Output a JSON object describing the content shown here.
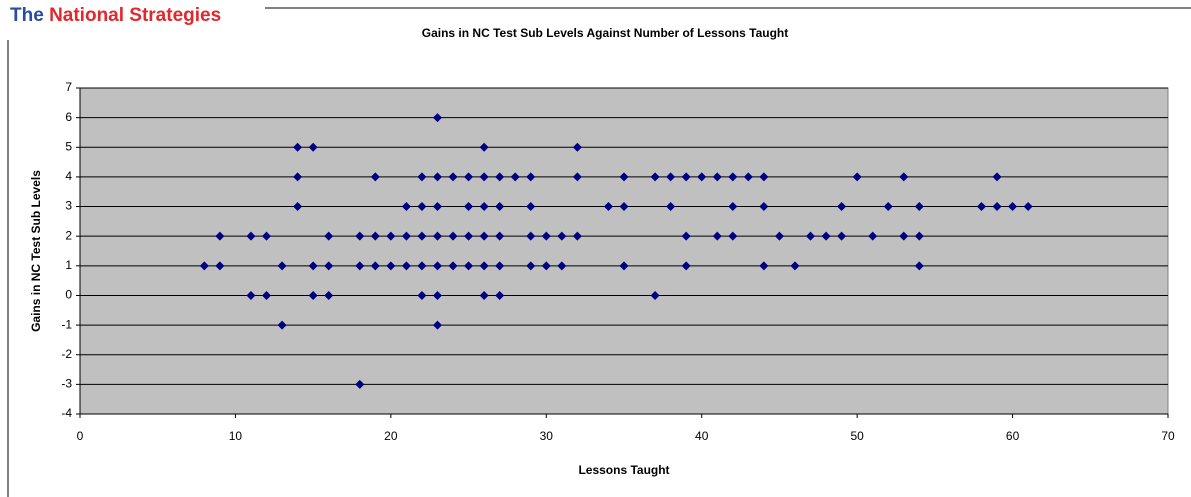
{
  "brand": {
    "prefix": "The",
    "name": "National Strategies"
  },
  "chart_data": {
    "type": "scatter",
    "title": "Gains in NC Test Sub Levels Against Number of Lessons Taught",
    "x_label": "Lessons Taught",
    "y_label": "Gains in NC Test Sub Levels",
    "color": "#000080",
    "background": "#c0c0c0",
    "grid": true,
    "xlim": [
      0,
      70
    ],
    "xticks": [
      0,
      10,
      20,
      30,
      40,
      50,
      60,
      70
    ],
    "ylim": [
      -4,
      7
    ],
    "yticks": [
      -4,
      -3,
      -2,
      -1,
      0,
      1,
      2,
      3,
      4,
      5,
      6,
      7
    ],
    "x": [
      8,
      9,
      9,
      11,
      11,
      12,
      12,
      13,
      13,
      14,
      14,
      14,
      15,
      15,
      15,
      16,
      16,
      16,
      18,
      18,
      18,
      19,
      19,
      19,
      20,
      20,
      21,
      21,
      21,
      22,
      22,
      22,
      22,
      22,
      23,
      23,
      23,
      23,
      23,
      23,
      23,
      24,
      24,
      24,
      25,
      25,
      25,
      25,
      26,
      26,
      26,
      26,
      26,
      26,
      27,
      27,
      27,
      27,
      27,
      28,
      29,
      29,
      29,
      29,
      30,
      30,
      31,
      31,
      32,
      32,
      32,
      34,
      35,
      35,
      35,
      37,
      37,
      38,
      38,
      39,
      39,
      39,
      40,
      41,
      41,
      42,
      42,
      42,
      43,
      44,
      44,
      44,
      45,
      46,
      47,
      48,
      49,
      49,
      50,
      51,
      52,
      53,
      53,
      54,
      54,
      54,
      58,
      59,
      59,
      60,
      61
    ],
    "values": [
      1,
      2,
      1,
      2,
      0,
      2,
      0,
      1,
      -1,
      5,
      4,
      3,
      5,
      1,
      0,
      2,
      1,
      0,
      2,
      1,
      -3,
      4,
      2,
      1,
      2,
      1,
      3,
      2,
      1,
      4,
      3,
      2,
      1,
      0,
      6,
      4,
      3,
      2,
      1,
      0,
      -1,
      4,
      2,
      1,
      4,
      3,
      2,
      1,
      5,
      4,
      3,
      2,
      1,
      0,
      4,
      3,
      2,
      1,
      0,
      4,
      4,
      3,
      2,
      1,
      2,
      1,
      2,
      1,
      5,
      4,
      2,
      3,
      4,
      3,
      1,
      4,
      0,
      4,
      3,
      4,
      2,
      1,
      4,
      4,
      2,
      4,
      3,
      2,
      4,
      4,
      3,
      1,
      2,
      1,
      2,
      2,
      3,
      2,
      4,
      2,
      3,
      4,
      2,
      3,
      2,
      1,
      3,
      4,
      3,
      3,
      3
    ]
  }
}
